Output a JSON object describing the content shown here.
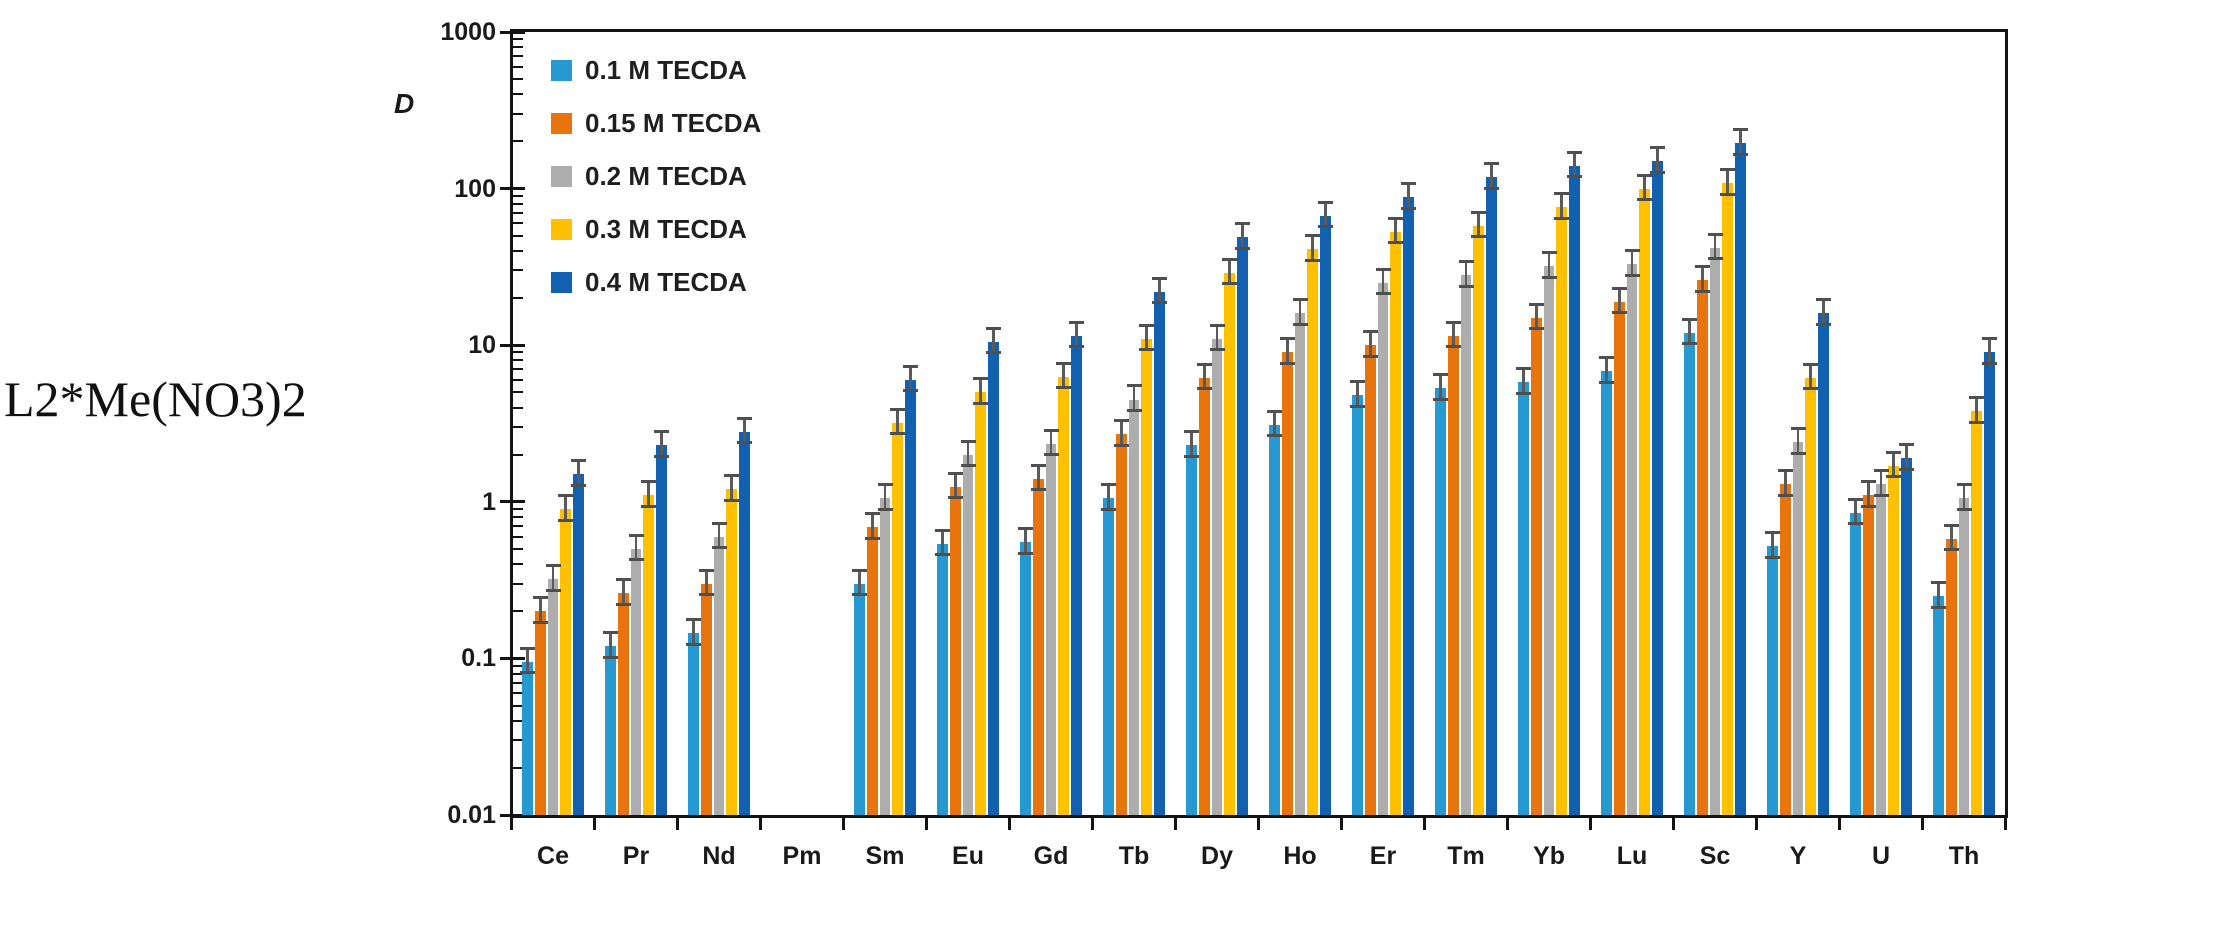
{
  "left_label": "L2*Me(NO3)2",
  "y_axis_title": "D",
  "legend": [
    {
      "label": "0.1 M TECDA",
      "color": "#2799D2"
    },
    {
      "label": "0.15 M TECDA",
      "color": "#E8740D"
    },
    {
      "label": "0.2 M TECDA",
      "color": "#ADADAD"
    },
    {
      "label": "0.3 M TECDA",
      "color": "#FFC000"
    },
    {
      "label": "0.4 M TECDA",
      "color": "#1261B1"
    }
  ],
  "chart_data": {
    "type": "bar",
    "scale": "log",
    "title": "",
    "xlabel": "",
    "ylabel": "D",
    "ylim": [
      0.01,
      1000
    ],
    "y_tick_labels": [
      "1000",
      "100",
      "10",
      "1",
      "0.1",
      "0.01"
    ],
    "grid": false,
    "legend_position": "top-left-inside",
    "row_label": "L2*Me(NO3)2",
    "categories": [
      "Ce",
      "Pr",
      "Nd",
      "Pm",
      "Sm",
      "Eu",
      "Gd",
      "Tb",
      "Dy",
      "Ho",
      "Er",
      "Tm",
      "Yb",
      "Lu",
      "Sc",
      "Y",
      "U",
      "Th"
    ],
    "series": [
      {
        "name": "0.1 M TECDA",
        "color": "#2799D2",
        "values": [
          0.095,
          0.12,
          0.145,
          null,
          0.3,
          0.54,
          0.55,
          1.05,
          2.3,
          3.1,
          4.8,
          5.3,
          5.8,
          6.8,
          12,
          0.52,
          0.85,
          0.25
        ]
      },
      {
        "name": "0.15 M TECDA",
        "color": "#E8740D",
        "values": [
          0.2,
          0.26,
          0.3,
          null,
          0.69,
          1.25,
          1.4,
          2.7,
          6.2,
          9.0,
          10,
          11.5,
          15,
          19,
          26,
          1.3,
          1.1,
          0.58
        ]
      },
      {
        "name": "0.2 M TECDA",
        "color": "#ADADAD",
        "values": [
          0.32,
          0.5,
          0.6,
          null,
          1.05,
          2.0,
          2.35,
          4.5,
          11,
          16,
          25,
          28,
          32,
          33,
          42,
          2.4,
          1.3,
          1.05
        ]
      },
      {
        "name": "0.3 M TECDA",
        "color": "#FFC000",
        "values": [
          0.9,
          1.1,
          1.2,
          null,
          3.2,
          5.0,
          6.3,
          11,
          29,
          41,
          53,
          58,
          76,
          100,
          108,
          6.2,
          1.7,
          3.8
        ]
      },
      {
        "name": "0.4 M TECDA",
        "color": "#1261B1",
        "values": [
          1.5,
          2.3,
          2.8,
          null,
          6.0,
          10.5,
          11.5,
          22,
          49,
          67,
          88,
          118,
          140,
          150,
          195,
          16,
          1.9,
          9.0
        ]
      }
    ],
    "error_bars": {
      "visible": true,
      "upper_factor": 1.22,
      "lower_factor": 0.85,
      "color": "#5a5a5a"
    }
  }
}
